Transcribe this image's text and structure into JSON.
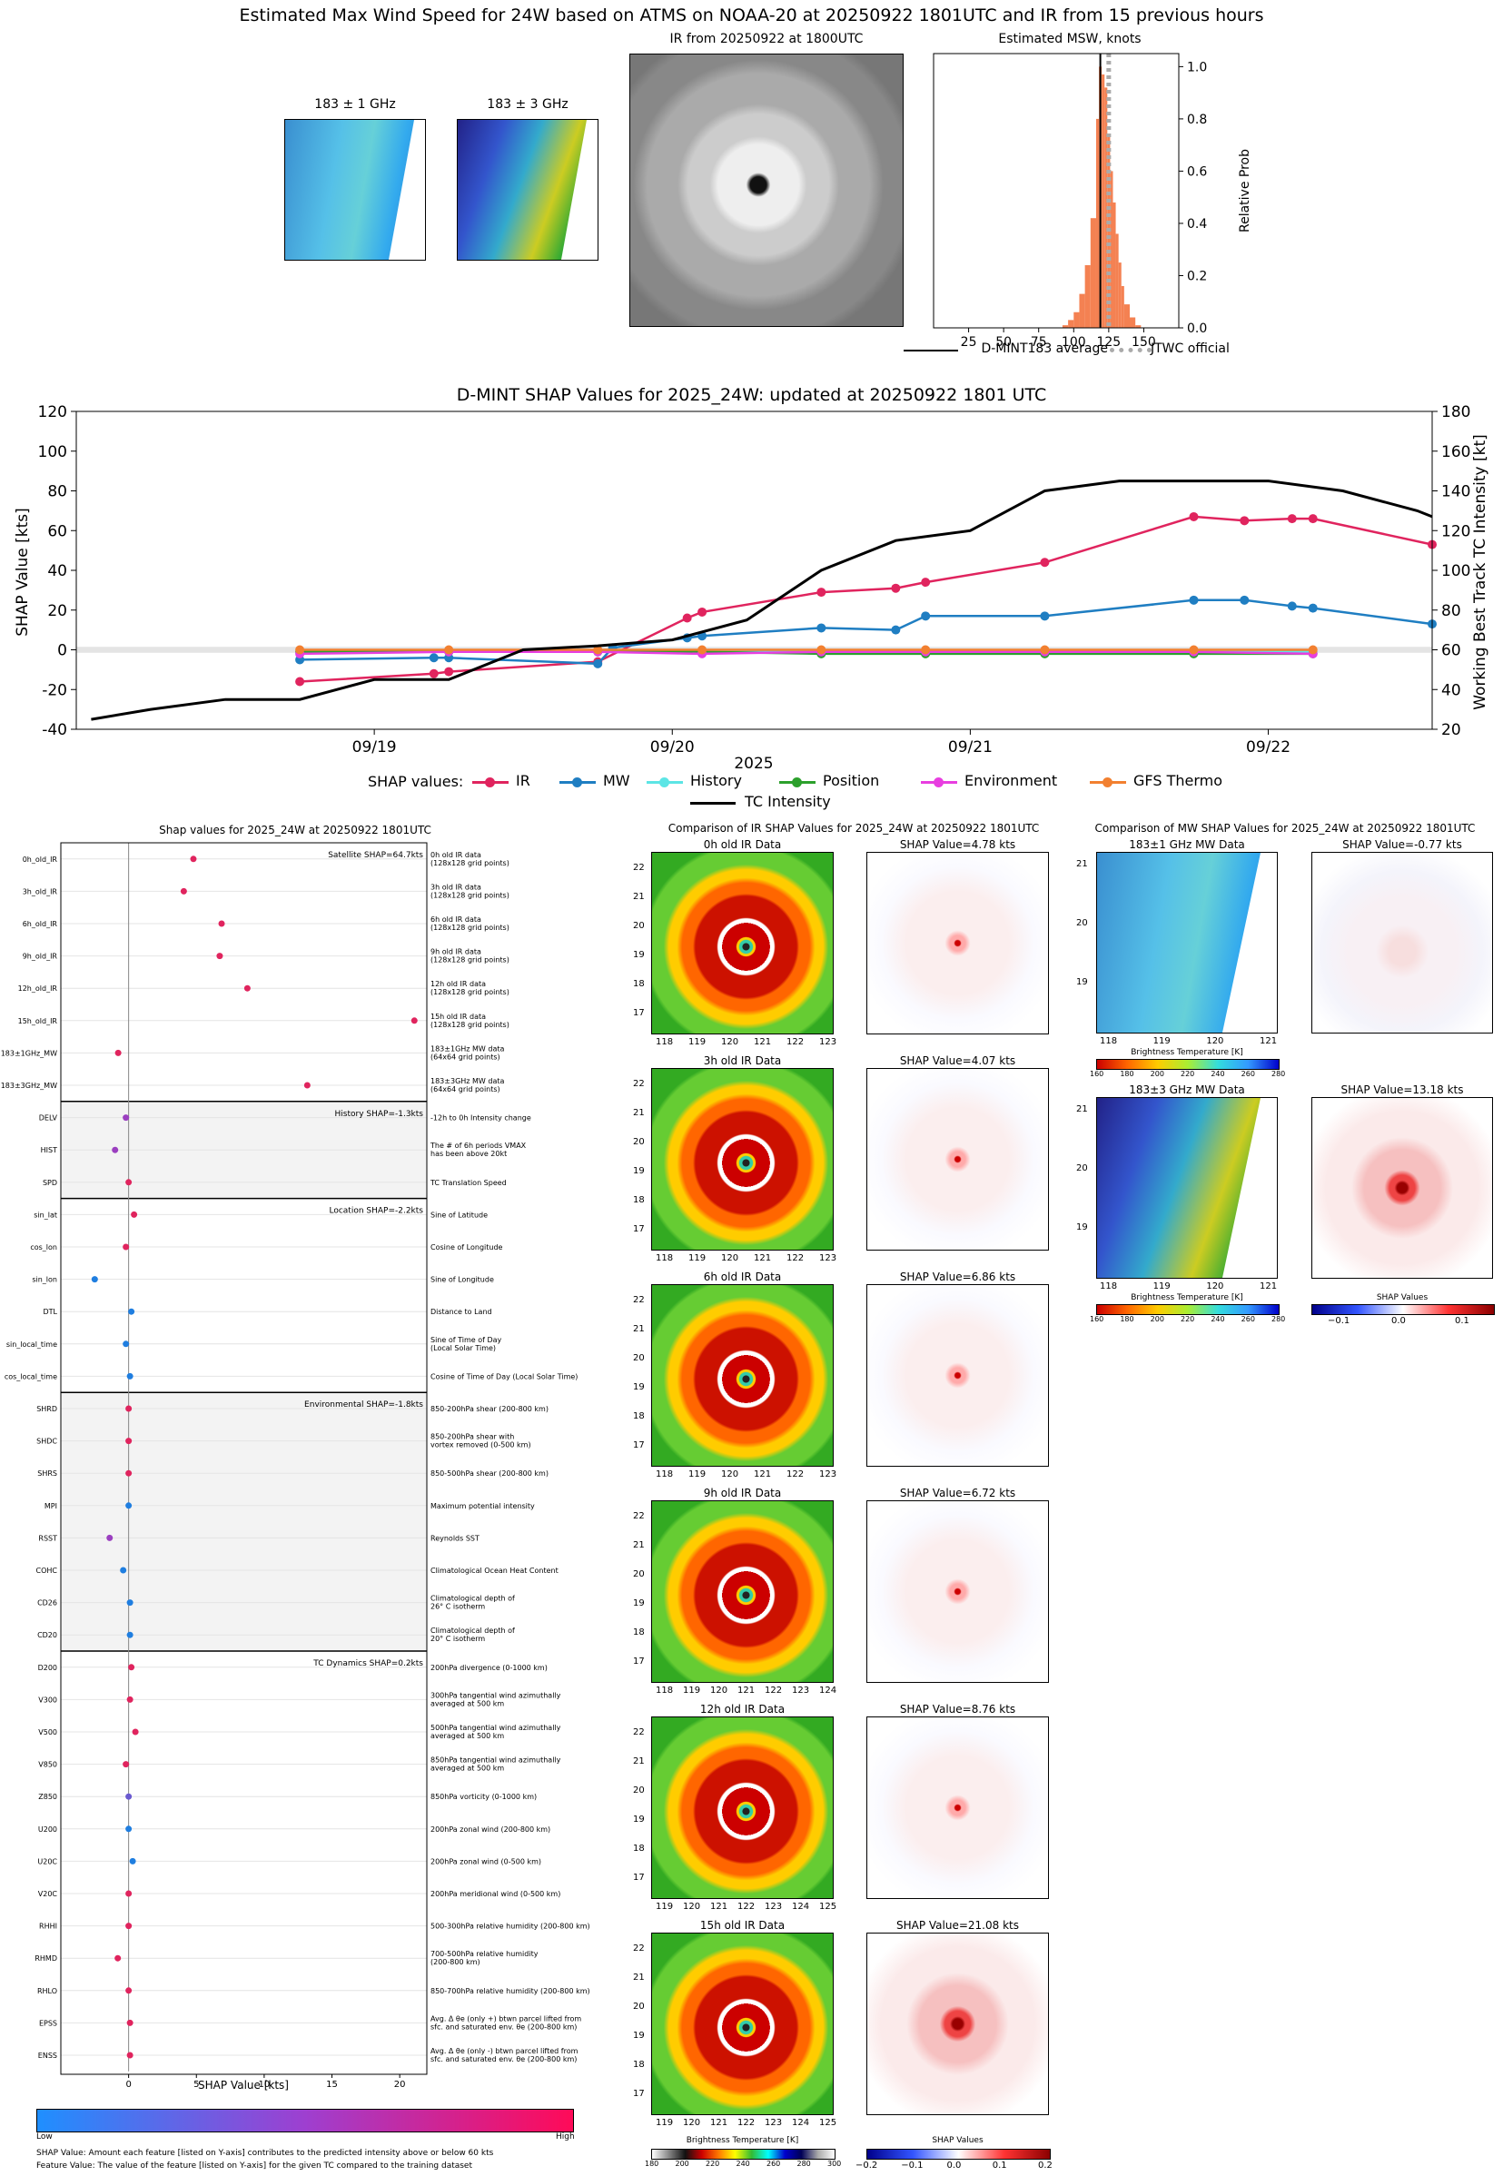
{
  "header": {
    "main_title": "Estimated Max Wind Speed for 24W based on ATMS on NOAA-20 at 20250922 1801UTC and IR from 15 previous hours",
    "mw1_title": "183 ± 1 GHz",
    "mw3_title": "183 ± 3 GHz",
    "ir_title": "IR from 20250922 at 1800UTC",
    "msw_title": "Estimated MSW, knots",
    "msw_ylabel": "Relative Prob",
    "legend_avg": "D-MINT183 average",
    "legend_jtwc": "JTWC official"
  },
  "shap_ts": {
    "title": "D-MINT SHAP Values for 2025_24W: updated at 20250922 1801 UTC",
    "xlabel": "2025",
    "ylabel_left": "SHAP Value [kts]",
    "ylabel_right": "Working Best Track TC Intensity [kt]",
    "legend_title": "SHAP values:",
    "legend_intensity": "TC Intensity"
  },
  "beeswarm": {
    "title": "Shap values for 2025_24W at 20250922 1801UTC",
    "xlabel": "SHAP Value [kts]",
    "colorbar_low": "Low",
    "colorbar_high": "High",
    "footnote1": "SHAP Value: Amount each feature [listed on Y-axis] contributes to the predicted intensity above or below 60 kts",
    "footnote2": "Feature Value: The value of the feature [listed on Y-axis] for the given TC compared to the training dataset"
  },
  "ir_compare": {
    "title": "Comparison of IR SHAP Values for 2025_24W at 20250922 1801UTC",
    "panels": [
      {
        "label": "0h old IR Data",
        "shap": "SHAP Value=4.78 kts",
        "xticks": [
          "118",
          "119",
          "120",
          "121",
          "122",
          "123"
        ],
        "yticks": [
          "22",
          "21",
          "20",
          "19",
          "18",
          "17"
        ]
      },
      {
        "label": "3h old IR Data",
        "shap": "SHAP Value=4.07 kts",
        "xticks": [
          "118",
          "119",
          "120",
          "121",
          "122",
          "123"
        ],
        "yticks": [
          "22",
          "21",
          "20",
          "19",
          "18",
          "17"
        ]
      },
      {
        "label": "6h old IR Data",
        "shap": "SHAP Value=6.86 kts",
        "xticks": [
          "118",
          "119",
          "120",
          "121",
          "122",
          "123"
        ],
        "yticks": [
          "22",
          "21",
          "20",
          "19",
          "18",
          "17"
        ]
      },
      {
        "label": "9h old IR Data",
        "shap": "SHAP Value=6.72 kts",
        "xticks": [
          "118",
          "119",
          "120",
          "121",
          "122",
          "123",
          "124"
        ],
        "yticks": [
          "22",
          "21",
          "20",
          "19",
          "18",
          "17"
        ]
      },
      {
        "label": "12h old IR Data",
        "shap": "SHAP Value=8.76 kts",
        "xticks": [
          "119",
          "120",
          "121",
          "122",
          "123",
          "124",
          "125"
        ],
        "yticks": [
          "22",
          "21",
          "20",
          "19",
          "18",
          "17"
        ]
      },
      {
        "label": "15h old IR Data",
        "shap": "SHAP Value=21.08 kts",
        "xticks": [
          "119",
          "120",
          "121",
          "122",
          "123",
          "124",
          "125"
        ],
        "yticks": [
          "22",
          "21",
          "20",
          "19",
          "18",
          "17"
        ]
      }
    ],
    "bt_label": "Brightness Temperature [K]",
    "bt_ticks": [
      "180",
      "200",
      "220",
      "240",
      "260",
      "280",
      "300"
    ],
    "shap_label": "SHAP Values",
    "shap_ticks": [
      "−0.2",
      "−0.1",
      "0.0",
      "0.1",
      "0.2"
    ]
  },
  "mw_compare": {
    "title": "Comparison of MW SHAP Values for 2025_24W at 20250922 1801UTC",
    "p1_label": "183±1 GHz MW Data",
    "p1_shap": "SHAP Value=-0.77 kts",
    "p3_label": "183±3 GHz MW Data",
    "p3_shap": "SHAP Value=13.18 kts",
    "xticks": [
      "118",
      "119",
      "120",
      "121"
    ],
    "p1_yticks": [
      "21",
      "20",
      "19"
    ],
    "p3_yticks": [
      "21",
      "20",
      "19"
    ],
    "bt_label": "Brightness Temperature [K]",
    "bt_ticks": [
      "160",
      "180",
      "200",
      "220",
      "240",
      "260",
      "280"
    ],
    "shap_label": "SHAP Values",
    "shap_ticks": [
      "−0.1",
      "0.0",
      "0.1"
    ]
  },
  "colors": {
    "ir": "#e0245e",
    "mw": "#1f7ec2",
    "history": "#5ce5e5",
    "position": "#2ca02c",
    "environment": "#e83ee0",
    "gfs": "#f28030",
    "intensity": "#000000",
    "hist_bar": "#f48152"
  },
  "chart_data": [
    {
      "type": "bar",
      "name": "msw_histogram",
      "title": "Estimated MSW, knots",
      "ylabel": "Relative Prob",
      "xlim": [
        0,
        175
      ],
      "ylim": [
        0,
        1.05
      ],
      "xticks": [
        25,
        50,
        75,
        100,
        125,
        150
      ],
      "yticks": [
        0.0,
        0.2,
        0.4,
        0.6,
        0.8,
        1.0
      ],
      "bins": [
        92,
        96,
        100,
        104,
        108,
        112,
        116,
        118,
        120,
        122,
        124,
        126,
        128,
        130,
        132,
        134,
        136,
        140,
        144
      ],
      "values": [
        0.01,
        0.03,
        0.06,
        0.13,
        0.24,
        0.42,
        0.8,
        1.0,
        0.97,
        0.92,
        0.74,
        0.6,
        0.48,
        0.36,
        0.25,
        0.16,
        0.09,
        0.04,
        0.01
      ],
      "average": 119,
      "jtwc": 125
    },
    {
      "type": "line",
      "name": "shap_timeseries",
      "title": "D-MINT SHAP Values for 2025_24W: updated at 20250922 1801 UTC",
      "xticks": [
        "09/19",
        "09/20",
        "09/21",
        "09/22"
      ],
      "yticks_left": [
        -40,
        -20,
        0,
        20,
        40,
        60,
        80,
        100,
        120
      ],
      "yticks_right": [
        20,
        40,
        60,
        80,
        100,
        120,
        140,
        160,
        180
      ],
      "ylim": [
        -40,
        120
      ],
      "ylim_right": [
        20,
        180
      ],
      "xlim": [
        0.0,
        4.55
      ],
      "series": [
        {
          "name": "IR",
          "x": [
            0.75,
            1.2,
            1.25,
            1.75,
            2.05,
            2.1,
            2.5,
            2.75,
            2.85,
            3.25,
            3.75,
            3.92,
            4.08,
            4.15,
            4.55
          ],
          "values": [
            -16,
            -12,
            -11,
            -6,
            16,
            19,
            29,
            31,
            34,
            44,
            67,
            65,
            66,
            66,
            53
          ]
        },
        {
          "name": "MW",
          "x": [
            0.75,
            1.2,
            1.25,
            1.75,
            1.8,
            2.05,
            2.1,
            2.5,
            2.75,
            2.85,
            3.25,
            3.75,
            3.92,
            4.08,
            4.15,
            4.55
          ],
          "values": [
            -5,
            -4,
            -4,
            -7,
            1,
            6,
            7,
            11,
            10,
            17,
            17,
            25,
            25,
            22,
            21,
            13
          ]
        },
        {
          "name": "History",
          "x": [
            0.75,
            1.25,
            1.75,
            2.1,
            2.5,
            2.85,
            3.25,
            3.75,
            4.15
          ],
          "values": [
            -1,
            -1,
            -1,
            -1,
            -1,
            -1,
            -1,
            -1,
            -1
          ]
        },
        {
          "name": "Position",
          "x": [
            0.75,
            1.25,
            1.75,
            2.1,
            2.5,
            2.85,
            3.25,
            3.75,
            4.15
          ],
          "values": [
            -1,
            -1,
            -1,
            -1,
            -2,
            -2,
            -2,
            -2,
            -2
          ]
        },
        {
          "name": "Environment",
          "x": [
            0.75,
            1.25,
            1.75,
            2.1,
            2.5,
            2.85,
            3.25,
            3.75,
            4.15
          ],
          "values": [
            -2,
            -1,
            -1,
            -2,
            -1,
            -1,
            -1,
            -1,
            -2
          ]
        },
        {
          "name": "GFS Thermo",
          "x": [
            0.75,
            1.25,
            1.75,
            2.1,
            2.5,
            2.85,
            3.25,
            3.75,
            4.15
          ],
          "values": [
            0,
            0,
            0,
            0,
            0,
            0,
            0,
            0,
            0
          ]
        },
        {
          "name": "TC Intensity",
          "axis": "right",
          "x": [
            0.05,
            0.25,
            0.5,
            0.75,
            1.0,
            1.25,
            1.5,
            1.75,
            2.0,
            2.25,
            2.5,
            2.75,
            3.0,
            3.25,
            3.5,
            3.75,
            4.0,
            4.25,
            4.5,
            4.55
          ],
          "values": [
            25,
            30,
            35,
            35,
            45,
            45,
            60,
            62,
            65,
            75,
            100,
            115,
            120,
            140,
            145,
            145,
            145,
            140,
            130,
            127
          ]
        }
      ],
      "legend_order": [
        "IR",
        "MW",
        "History",
        "Position",
        "Environment",
        "GFS Thermo"
      ]
    },
    {
      "type": "scatter",
      "name": "shap_beeswarm",
      "title": "Shap values for 2025_24W at 20250922 1801UTC",
      "xlabel": "SHAP Value [kts]",
      "xlim": [
        -5,
        22
      ],
      "xticks": [
        0,
        5,
        10,
        15,
        20
      ],
      "groups": [
        {
          "label": "Satellite SHAP=64.7kts",
          "features": [
            {
              "name": "0h_old_IR",
              "desc": [
                "0h old IR data",
                "(128x128 grid points)"
              ],
              "value": 4.78,
              "color": "#e0245e"
            },
            {
              "name": "3h_old_IR",
              "desc": [
                "3h old IR data",
                "(128x128 grid points)"
              ],
              "value": 4.07,
              "color": "#e0245e"
            },
            {
              "name": "6h_old_IR",
              "desc": [
                "6h old IR data",
                "(128x128 grid points)"
              ],
              "value": 6.86,
              "color": "#e0245e"
            },
            {
              "name": "9h_old_IR",
              "desc": [
                "9h old IR data",
                "(128x128 grid points)"
              ],
              "value": 6.72,
              "color": "#e0245e"
            },
            {
              "name": "12h_old_IR",
              "desc": [
                "12h old IR data",
                "(128x128 grid points)"
              ],
              "value": 8.76,
              "color": "#e0245e"
            },
            {
              "name": "15h_old_IR",
              "desc": [
                "15h old IR data",
                "(128x128 grid points)"
              ],
              "value": 21.08,
              "color": "#e0245e"
            },
            {
              "name": "183±1GHz_MW",
              "desc": [
                "183±1GHz MW data",
                "(64x64 grid points)"
              ],
              "value": -0.77,
              "color": "#e0245e"
            },
            {
              "name": "183±3GHz_MW",
              "desc": [
                "183±3GHz MW data",
                "(64x64 grid points)"
              ],
              "value": 13.18,
              "color": "#e0245e"
            }
          ]
        },
        {
          "label": "History SHAP=-1.3kts",
          "shaded": true,
          "features": [
            {
              "name": "DELV",
              "desc": [
                "-12h to 0h Intensity change"
              ],
              "value": -0.2,
              "color": "#9b3fc0"
            },
            {
              "name": "HIST",
              "desc": [
                "The # of 6h periods VMAX",
                "has been above 20kt"
              ],
              "value": -1.0,
              "color": "#9b3fc0"
            },
            {
              "name": "SPD",
              "desc": [
                "TC Translation Speed"
              ],
              "value": 0.0,
              "color": "#e0245e"
            }
          ]
        },
        {
          "label": "Location SHAP=-2.2kts",
          "features": [
            {
              "name": "sin_lat",
              "desc": [
                "Sine of Latitude"
              ],
              "value": 0.4,
              "color": "#e0245e"
            },
            {
              "name": "cos_lon",
              "desc": [
                "Cosine of Longitude"
              ],
              "value": -0.2,
              "color": "#e0245e"
            },
            {
              "name": "sin_lon",
              "desc": [
                "Sine of Longitude"
              ],
              "value": -2.5,
              "color": "#1f7ee0"
            },
            {
              "name": "DTL",
              "desc": [
                "Distance to Land"
              ],
              "value": 0.2,
              "color": "#1f7ee0"
            },
            {
              "name": "sin_local_time",
              "desc": [
                "Sine of Time of Day",
                "(Local Solar Time)"
              ],
              "value": -0.2,
              "color": "#1f7ee0"
            },
            {
              "name": "cos_local_time",
              "desc": [
                "Cosine of Time of Day (Local Solar Time)"
              ],
              "value": 0.1,
              "color": "#1f7ee0"
            }
          ]
        },
        {
          "label": "Environmental SHAP=-1.8kts",
          "shaded": true,
          "features": [
            {
              "name": "SHRD",
              "desc": [
                "850-200hPa shear (200-800 km)"
              ],
              "value": 0.0,
              "color": "#e0245e"
            },
            {
              "name": "SHDC",
              "desc": [
                "850-200hPa shear with",
                "vortex removed (0-500 km)"
              ],
              "value": 0.0,
              "color": "#e0245e"
            },
            {
              "name": "SHRS",
              "desc": [
                "850-500hPa shear (200-800 km)"
              ],
              "value": 0.0,
              "color": "#e0245e"
            },
            {
              "name": "MPI",
              "desc": [
                "Maximum potential intensity"
              ],
              "value": 0.0,
              "color": "#1f7ee0"
            },
            {
              "name": "RSST",
              "desc": [
                "Reynolds SST"
              ],
              "value": -1.4,
              "color": "#9b3fc0"
            },
            {
              "name": "COHC",
              "desc": [
                "Climatological Ocean Heat Content"
              ],
              "value": -0.4,
              "color": "#1f7ee0"
            },
            {
              "name": "CD26",
              "desc": [
                "Climatological depth of",
                "26° C isotherm"
              ],
              "value": 0.1,
              "color": "#1f7ee0"
            },
            {
              "name": "CD20",
              "desc": [
                "Climatological depth of",
                "20° C isotherm"
              ],
              "value": 0.1,
              "color": "#1f7ee0"
            }
          ]
        },
        {
          "label": "TC Dynamics SHAP=0.2kts",
          "features": [
            {
              "name": "D200",
              "desc": [
                "200hPa divergence (0-1000 km)"
              ],
              "value": 0.2,
              "color": "#e0245e"
            },
            {
              "name": "V300",
              "desc": [
                "300hPa tangential wind azimuthally",
                "averaged at 500 km"
              ],
              "value": 0.1,
              "color": "#e0245e"
            },
            {
              "name": "V500",
              "desc": [
                "500hPa tangential wind azimuthally",
                "averaged at 500 km"
              ],
              "value": 0.5,
              "color": "#e0245e"
            },
            {
              "name": "V850",
              "desc": [
                "850hPa tangential wind azimuthally",
                "averaged at 500 km"
              ],
              "value": -0.2,
              "color": "#e0245e"
            },
            {
              "name": "Z850",
              "desc": [
                "850hPa vorticity (0-1000 km)"
              ],
              "value": 0.0,
              "color": "#6a5ad0"
            },
            {
              "name": "U200",
              "desc": [
                "200hPa zonal wind (200-800 km)"
              ],
              "value": 0.0,
              "color": "#1f7ee0"
            },
            {
              "name": "U20C",
              "desc": [
                "200hPa zonal wind (0-500 km)"
              ],
              "value": 0.3,
              "color": "#1f7ee0"
            },
            {
              "name": "V20C",
              "desc": [
                "200hPa meridional wind (0-500 km)"
              ],
              "value": 0.0,
              "color": "#e0245e"
            },
            {
              "name": "RHHI",
              "desc": [
                "500-300hPa relative humidity (200-800 km)"
              ],
              "value": 0.0,
              "color": "#e0245e"
            },
            {
              "name": "RHMD",
              "desc": [
                "700-500hPa relative humidity",
                "(200-800 km)"
              ],
              "value": -0.8,
              "color": "#e0245e"
            },
            {
              "name": "RHLO",
              "desc": [
                "850-700hPa relative humidity (200-800 km)"
              ],
              "value": 0.0,
              "color": "#e0245e"
            },
            {
              "name": "EPSS",
              "desc": [
                "Avg. Δ θe (only +) btwn parcel lifted from",
                "sfc. and saturated env. θe (200-800 km)"
              ],
              "value": 0.1,
              "color": "#e0245e"
            },
            {
              "name": "ENSS",
              "desc": [
                "Avg. Δ θe (only -) btwn parcel lifted from",
                "sfc. and saturated env. θe (200-800 km)"
              ],
              "value": 0.1,
              "color": "#e0245e"
            }
          ]
        }
      ]
    }
  ]
}
